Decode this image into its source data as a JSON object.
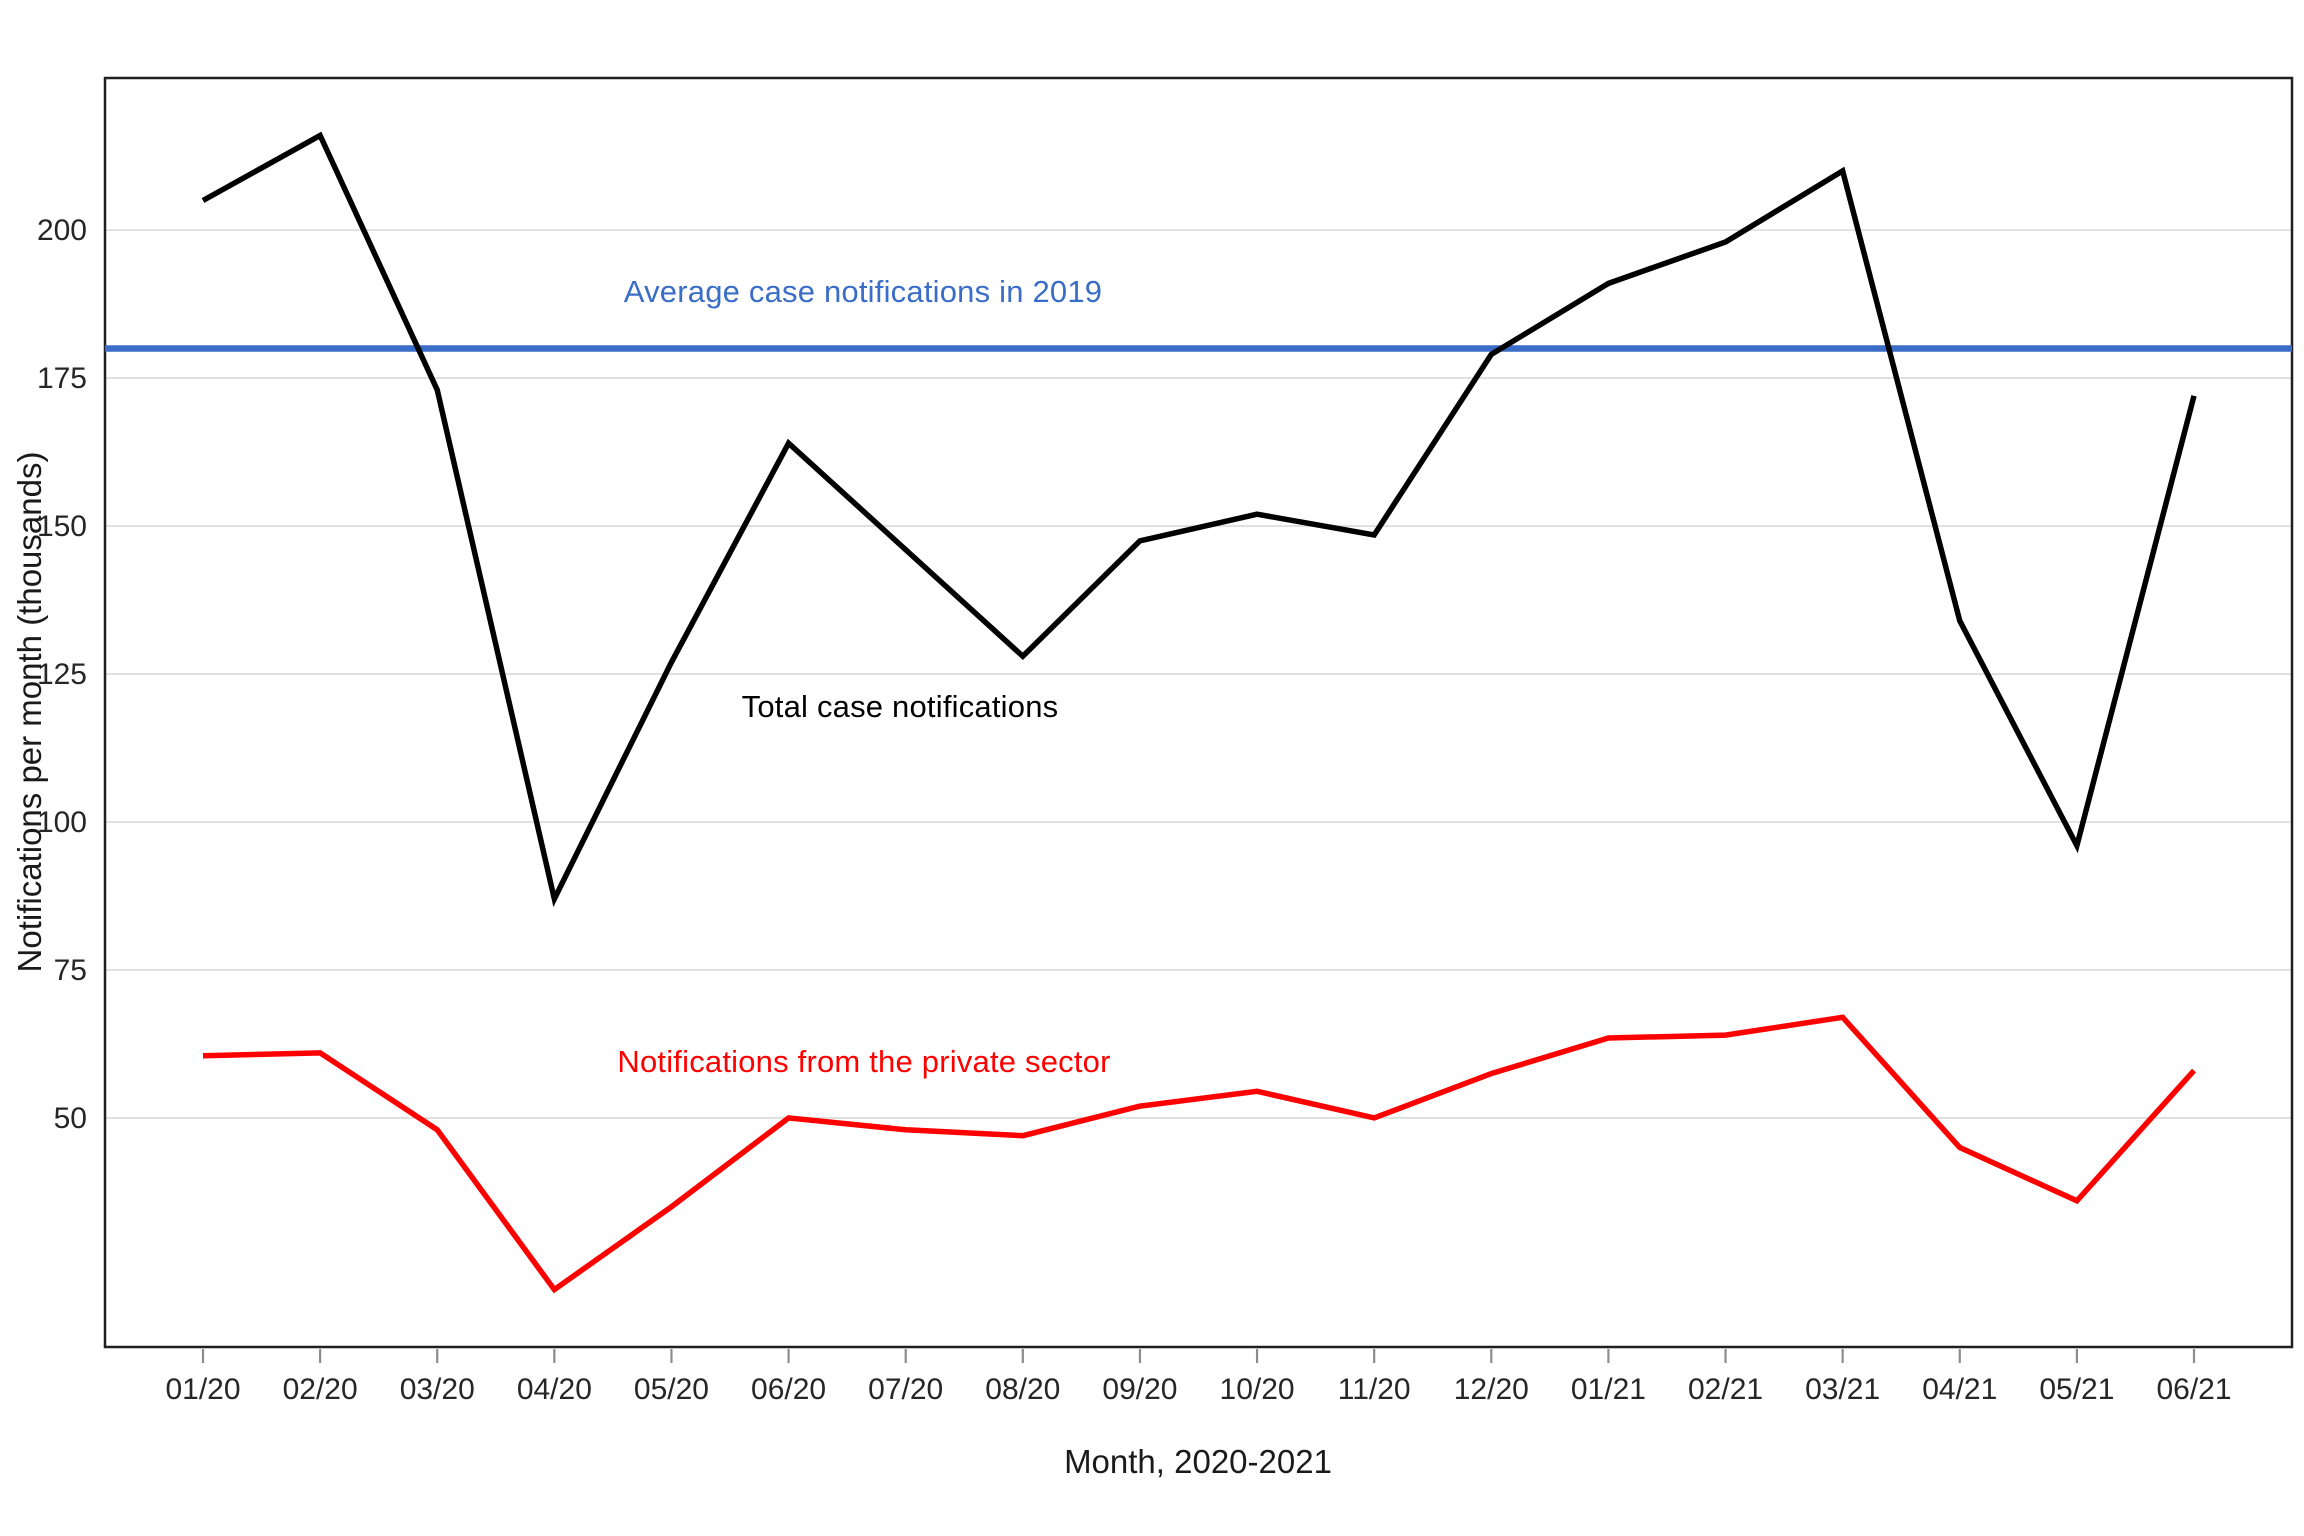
{
  "page": {
    "background_color": "#ffffff"
  },
  "chart_data": {
    "type": "line",
    "title": "",
    "xlabel": "Month, 2020-2021",
    "ylabel": "Notifications per month (thousands)",
    "x_tick_labels": [
      "01/20",
      "02/20",
      "03/20",
      "04/20",
      "05/20",
      "06/20",
      "07/20",
      "08/20",
      "09/20",
      "10/20",
      "11/20",
      "12/20",
      "01/21",
      "02/21",
      "03/21",
      "04/21",
      "05/21",
      "06/21"
    ],
    "y_ticks": [
      50,
      75,
      100,
      125,
      150,
      175,
      200
    ],
    "ylim": [
      11.3,
      225.7
    ],
    "grid": "horizontal-only, light gray",
    "legend_position": "inline-annotations",
    "series": [
      {
        "name": "Total case notifications",
        "color": "#000000",
        "values": [
          205,
          216,
          173,
          87,
          127,
          164,
          146,
          128,
          147.5,
          152,
          148.5,
          179,
          191,
          198,
          210,
          134,
          96,
          172
        ]
      },
      {
        "name": "Notifications from the private sector",
        "color": "#ff0000",
        "values": [
          60.5,
          61,
          48,
          21,
          35,
          50,
          48,
          47,
          52,
          54.5,
          50,
          57.5,
          63.5,
          64,
          67,
          45,
          36,
          58
        ]
      }
    ],
    "reference_line": {
      "label": "Average case notifications in 2019",
      "value": 180,
      "color": "#3a6dc7"
    },
    "axis_colors": {
      "box": "#1f1f1f",
      "gridline": "#d9d9d9",
      "tick": "#8c8c8c",
      "tick_label": "#262626"
    }
  }
}
